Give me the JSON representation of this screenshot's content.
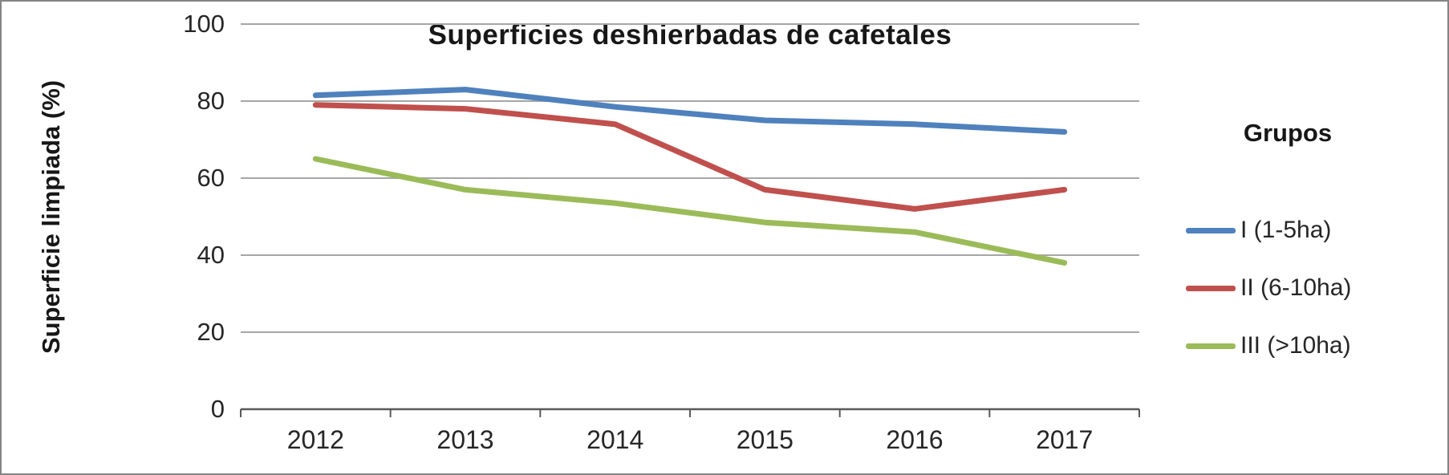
{
  "chart_data": {
    "type": "line",
    "title": "Superficies deshierbadas de cafetales",
    "ylabel": "Superficie limpiada (%)",
    "xlabel": "",
    "legend_title": "Grupos",
    "legend_position": "right",
    "grid": true,
    "ylim": [
      0,
      100
    ],
    "yticks": [
      0,
      20,
      40,
      60,
      80,
      100
    ],
    "categories": [
      "2012",
      "2013",
      "2014",
      "2015",
      "2016",
      "2017"
    ],
    "series": [
      {
        "name": "I (1-5ha)",
        "color": "#4F81BD",
        "values": [
          81.5,
          83,
          78.5,
          75,
          74,
          72
        ]
      },
      {
        "name": "II (6-10ha)",
        "color": "#C0504D",
        "values": [
          79,
          78,
          74,
          57,
          52,
          57
        ]
      },
      {
        "name": "III (>10ha)",
        "color": "#9BBB59",
        "values": [
          65,
          57,
          53.5,
          48.5,
          46,
          38
        ]
      }
    ],
    "colors": {
      "gridline": "#a6a6a6",
      "axis": "#595959",
      "text": "#262626"
    }
  }
}
